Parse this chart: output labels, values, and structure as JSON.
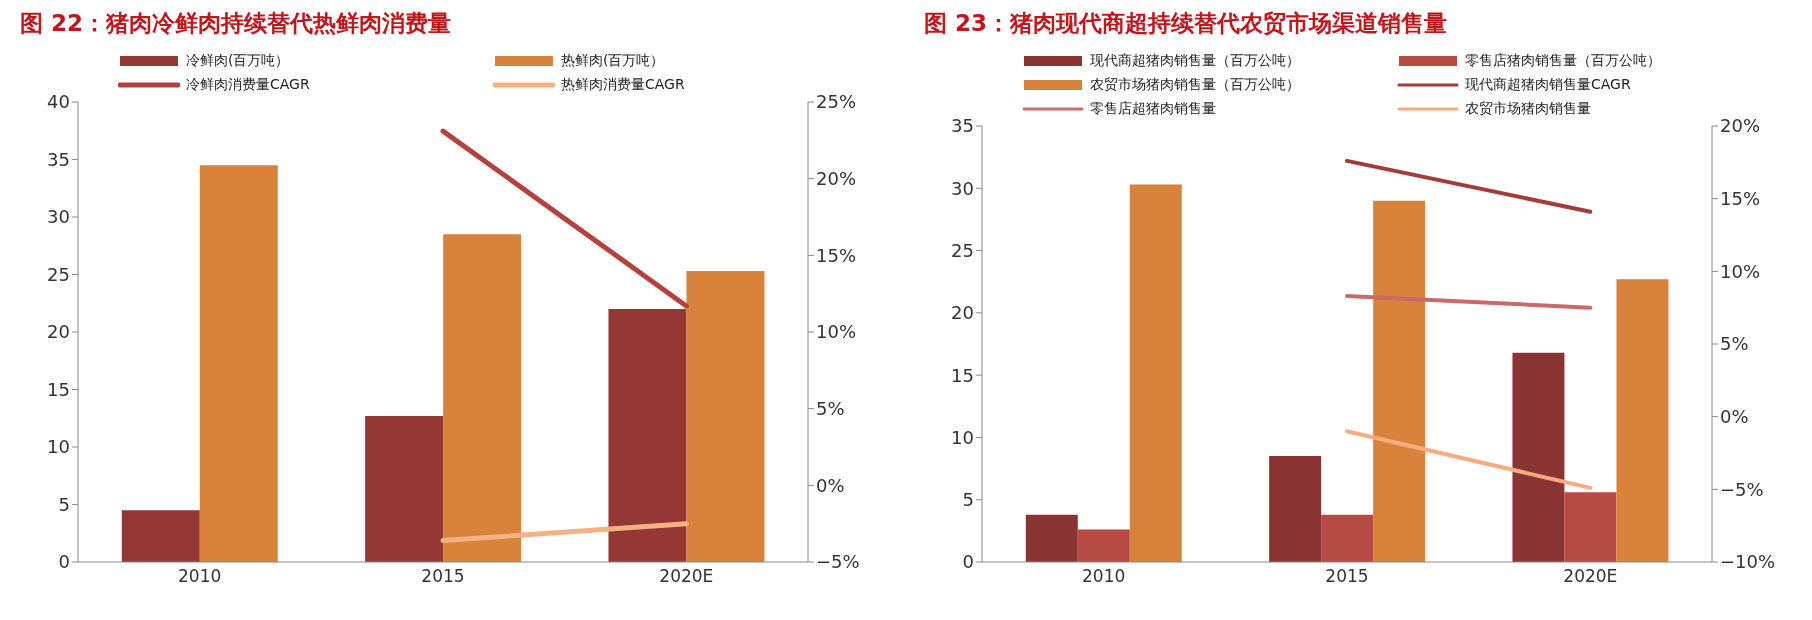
{
  "chart_data": [
    {
      "type": "bar",
      "title": "图 22：猪肉冷鲜肉持续替代热鲜肉消费量",
      "categories": [
        "2010",
        "2015",
        "2020E"
      ],
      "legend": "top",
      "grid": false,
      "ylim": [
        0,
        40
      ],
      "yticks": [
        0,
        5,
        10,
        15,
        20,
        25,
        30,
        35,
        40
      ],
      "y2lim": [
        -5,
        25
      ],
      "y2ticks": [
        {
          "value": -5,
          "label": "−5%"
        },
        {
          "value": 0,
          "label": "0%"
        },
        {
          "value": 5,
          "label": "5%"
        },
        {
          "value": 10,
          "label": "10%"
        },
        {
          "value": 15,
          "label": "15%"
        },
        {
          "value": 20,
          "label": "20%"
        },
        {
          "value": 25,
          "label": "25%"
        }
      ],
      "series": [
        {
          "name": "冷鲜肉(百万吨）",
          "color": "#953735",
          "values": [
            4.5,
            12.7,
            22
          ]
        },
        {
          "name": "热鲜肉(百万吨）",
          "color": "#d9823b",
          "values": [
            34.5,
            28.5,
            25.3
          ]
        },
        {
          "name": "冷鲜肉消费量CAGR",
          "type": "line",
          "axis": "y2",
          "color": "#b5413f",
          "values": [
            null,
            23.1,
            11.7
          ]
        },
        {
          "name": "热鲜肉消费量CAGR",
          "type": "line",
          "axis": "y2",
          "color": "#f4b183",
          "values": [
            null,
            -3.6,
            -2.5
          ]
        }
      ]
    },
    {
      "type": "bar",
      "title": "图 23：猪肉现代商超持续替代农贸市场渠道销售量",
      "categories": [
        "2010",
        "2015",
        "2020E"
      ],
      "legend": "top",
      "grid": false,
      "ylim": [
        0,
        35
      ],
      "yticks": [
        0,
        5,
        10,
        15,
        20,
        25,
        30,
        35
      ],
      "y2lim": [
        -10,
        20
      ],
      "y2ticks": [
        {
          "value": -10,
          "label": "−10%"
        },
        {
          "value": -5,
          "label": "−5%"
        },
        {
          "value": 0,
          "label": "0%"
        },
        {
          "value": 5,
          "label": "5%"
        },
        {
          "value": 10,
          "label": "10%"
        },
        {
          "value": 15,
          "label": "15%"
        },
        {
          "value": 20,
          "label": "20%"
        }
      ],
      "series": [
        {
          "name": "现代商超猪肉销售量（百万公吨）",
          "color": "#8b3434",
          "values": [
            3.8,
            8.5,
            16.8
          ]
        },
        {
          "name": "零售店猪肉销售量（百万公吨）",
          "color": "#b84a44",
          "values": [
            2.6,
            3.8,
            5.6
          ]
        },
        {
          "name": "农贸市场猪肉销售量（百万公吨）",
          "color": "#d9823b",
          "values": [
            30.3,
            29,
            22.7
          ]
        },
        {
          "name": "现代商超猪肉销售量CAGR",
          "type": "line",
          "axis": "y2",
          "color": "#a33b38",
          "values": [
            null,
            17.6,
            14.1
          ]
        },
        {
          "name": "零售店超猪肉销售量",
          "type": "line",
          "axis": "y2",
          "color": "#c86a6a",
          "values": [
            null,
            8.3,
            7.5
          ]
        },
        {
          "name": "农贸市场猪肉销售量",
          "type": "line",
          "axis": "y2",
          "color": "#f5ad7f",
          "values": [
            null,
            -1.0,
            -4.9
          ]
        }
      ]
    }
  ]
}
